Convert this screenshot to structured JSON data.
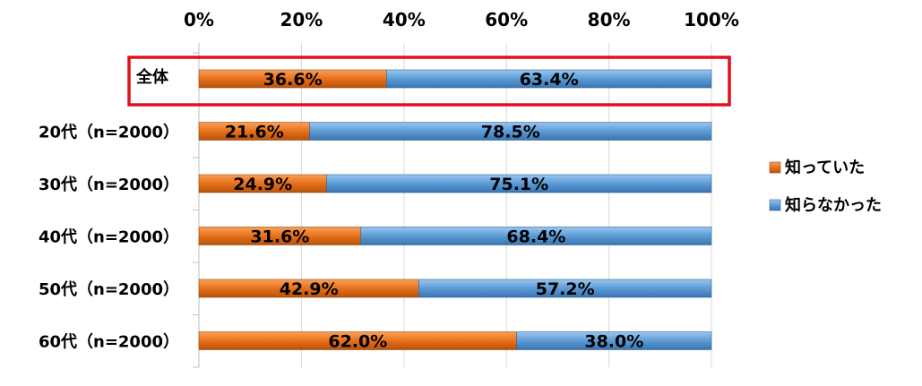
{
  "chart_data": {
    "type": "bar",
    "orientation": "horizontal",
    "stacked": true,
    "categories": [
      "全体",
      "20代（n=2000）",
      "30代（n=2000）",
      "40代（n=2000）",
      "50代（n=2000）",
      "60代（n=2000）"
    ],
    "series": [
      {
        "name": "知っていた",
        "values": [
          36.6,
          21.6,
          24.9,
          31.6,
          42.9,
          62.0
        ],
        "labels": [
          "36.6%",
          "21.6%",
          "24.9%",
          "31.6%",
          "42.9%",
          "62.0%"
        ],
        "color": "#E8701A"
      },
      {
        "name": "知らなかった",
        "values": [
          63.4,
          78.5,
          75.1,
          68.4,
          57.2,
          38.0
        ],
        "labels": [
          "63.4%",
          "78.5%",
          "75.1%",
          "68.4%",
          "57.2%",
          "38.0%"
        ],
        "color": "#5B9BD5"
      }
    ],
    "xlim": [
      0,
      100
    ],
    "x_ticks": [
      "0%",
      "20%",
      "40%",
      "60%",
      "80%",
      "100%"
    ],
    "x_axis_position": "top",
    "grid": true,
    "legend": "right",
    "highlight": {
      "category": "全体",
      "color": "#E0101E"
    }
  }
}
